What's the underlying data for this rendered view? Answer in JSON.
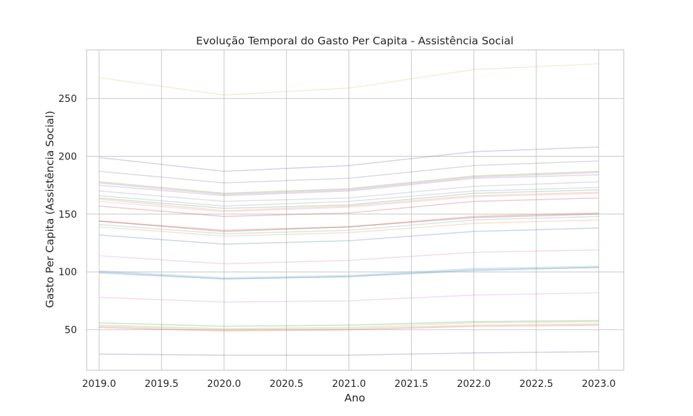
{
  "chart_data": {
    "type": "line",
    "title": "Evolução Temporal do Gasto Per Capita - Assistência Social",
    "xlabel": "Ano",
    "ylabel": "Gasto Per Capita (Assistência Social)",
    "xlim": [
      2018.9,
      2023.2
    ],
    "ylim": [
      15,
      292
    ],
    "x_ticks": [
      2019.0,
      2019.5,
      2020.0,
      2020.5,
      2021.0,
      2021.5,
      2022.0,
      2022.5,
      2023.0
    ],
    "x_tick_labels": [
      "2019.0",
      "2019.5",
      "2020.0",
      "2020.5",
      "2021.0",
      "2021.5",
      "2022.0",
      "2022.5",
      "2023.0"
    ],
    "y_ticks": [
      50,
      100,
      150,
      200,
      250
    ],
    "y_tick_labels": [
      "50",
      "100",
      "150",
      "200",
      "250"
    ],
    "grid": true,
    "legend": "none",
    "line_opacity": 0.3,
    "x": [
      2019,
      2020,
      2021,
      2022,
      2023
    ],
    "series": [
      {
        "color": "#dcc38a",
        "values": [
          268,
          253,
          259,
          275,
          280
        ]
      },
      {
        "color": "#7b6fb5",
        "values": [
          199,
          187,
          192,
          204,
          208
        ]
      },
      {
        "color": "#8c8c8c",
        "values": [
          187,
          177,
          181,
          192,
          196
        ]
      },
      {
        "color": "#8b9a3c",
        "values": [
          178,
          168,
          172,
          183,
          187
        ]
      },
      {
        "color": "#9d8ab6",
        "values": [
          177,
          167,
          171,
          182,
          186
        ]
      },
      {
        "color": "#b07bb8",
        "values": [
          175,
          166,
          170,
          181,
          184
        ]
      },
      {
        "color": "#a0a0a0",
        "values": [
          170,
          161,
          164,
          174,
          178
        ]
      },
      {
        "color": "#8aa3c8",
        "values": [
          166,
          157,
          161,
          170,
          173
        ]
      },
      {
        "color": "#6aa56a",
        "values": [
          164,
          155,
          158,
          168,
          171
        ]
      },
      {
        "color": "#e09a5a",
        "values": [
          163,
          153,
          157,
          166,
          169
        ]
      },
      {
        "color": "#e0a0c8",
        "values": [
          161,
          152,
          156,
          165,
          168
        ]
      },
      {
        "color": "#c85a5a",
        "values": [
          157,
          148,
          151,
          161,
          164
        ]
      },
      {
        "color": "#9a5a4a",
        "values": [
          144,
          135,
          139,
          147,
          150
        ]
      },
      {
        "color": "#d85a4a",
        "values": [
          144,
          136,
          139,
          148,
          151
        ]
      },
      {
        "color": "#6ab5c8",
        "values": [
          141,
          133,
          136,
          145,
          148
        ]
      },
      {
        "color": "#f0a060",
        "values": [
          139,
          131,
          134,
          142,
          145
        ]
      },
      {
        "color": "#5a80b5",
        "values": [
          132,
          124,
          127,
          135,
          138
        ]
      },
      {
        "color": "#e58ab5",
        "values": [
          114,
          107,
          110,
          117,
          119
        ]
      },
      {
        "color": "#5a7fb5",
        "values": [
          100,
          94,
          96,
          102,
          104
        ]
      },
      {
        "color": "#80b5d8",
        "values": [
          101,
          95,
          97,
          103,
          105
        ]
      },
      {
        "color": "#5ab0c8",
        "values": [
          99,
          94,
          96,
          101,
          104
        ]
      },
      {
        "color": "#d890d8",
        "values": [
          78,
          74,
          75,
          80,
          82
        ]
      },
      {
        "color": "#5aa55a",
        "values": [
          56,
          53,
          54,
          57,
          58
        ]
      },
      {
        "color": "#a0c060",
        "values": [
          54,
          51,
          52,
          56,
          57
        ]
      },
      {
        "color": "#e89a5a",
        "values": [
          53,
          50,
          51,
          54,
          55
        ]
      },
      {
        "color": "#d85a5a",
        "values": [
          52,
          49,
          50,
          53,
          54
        ]
      },
      {
        "color": "#6a6ab5",
        "values": [
          29,
          28,
          28,
          30,
          31
        ]
      }
    ]
  }
}
